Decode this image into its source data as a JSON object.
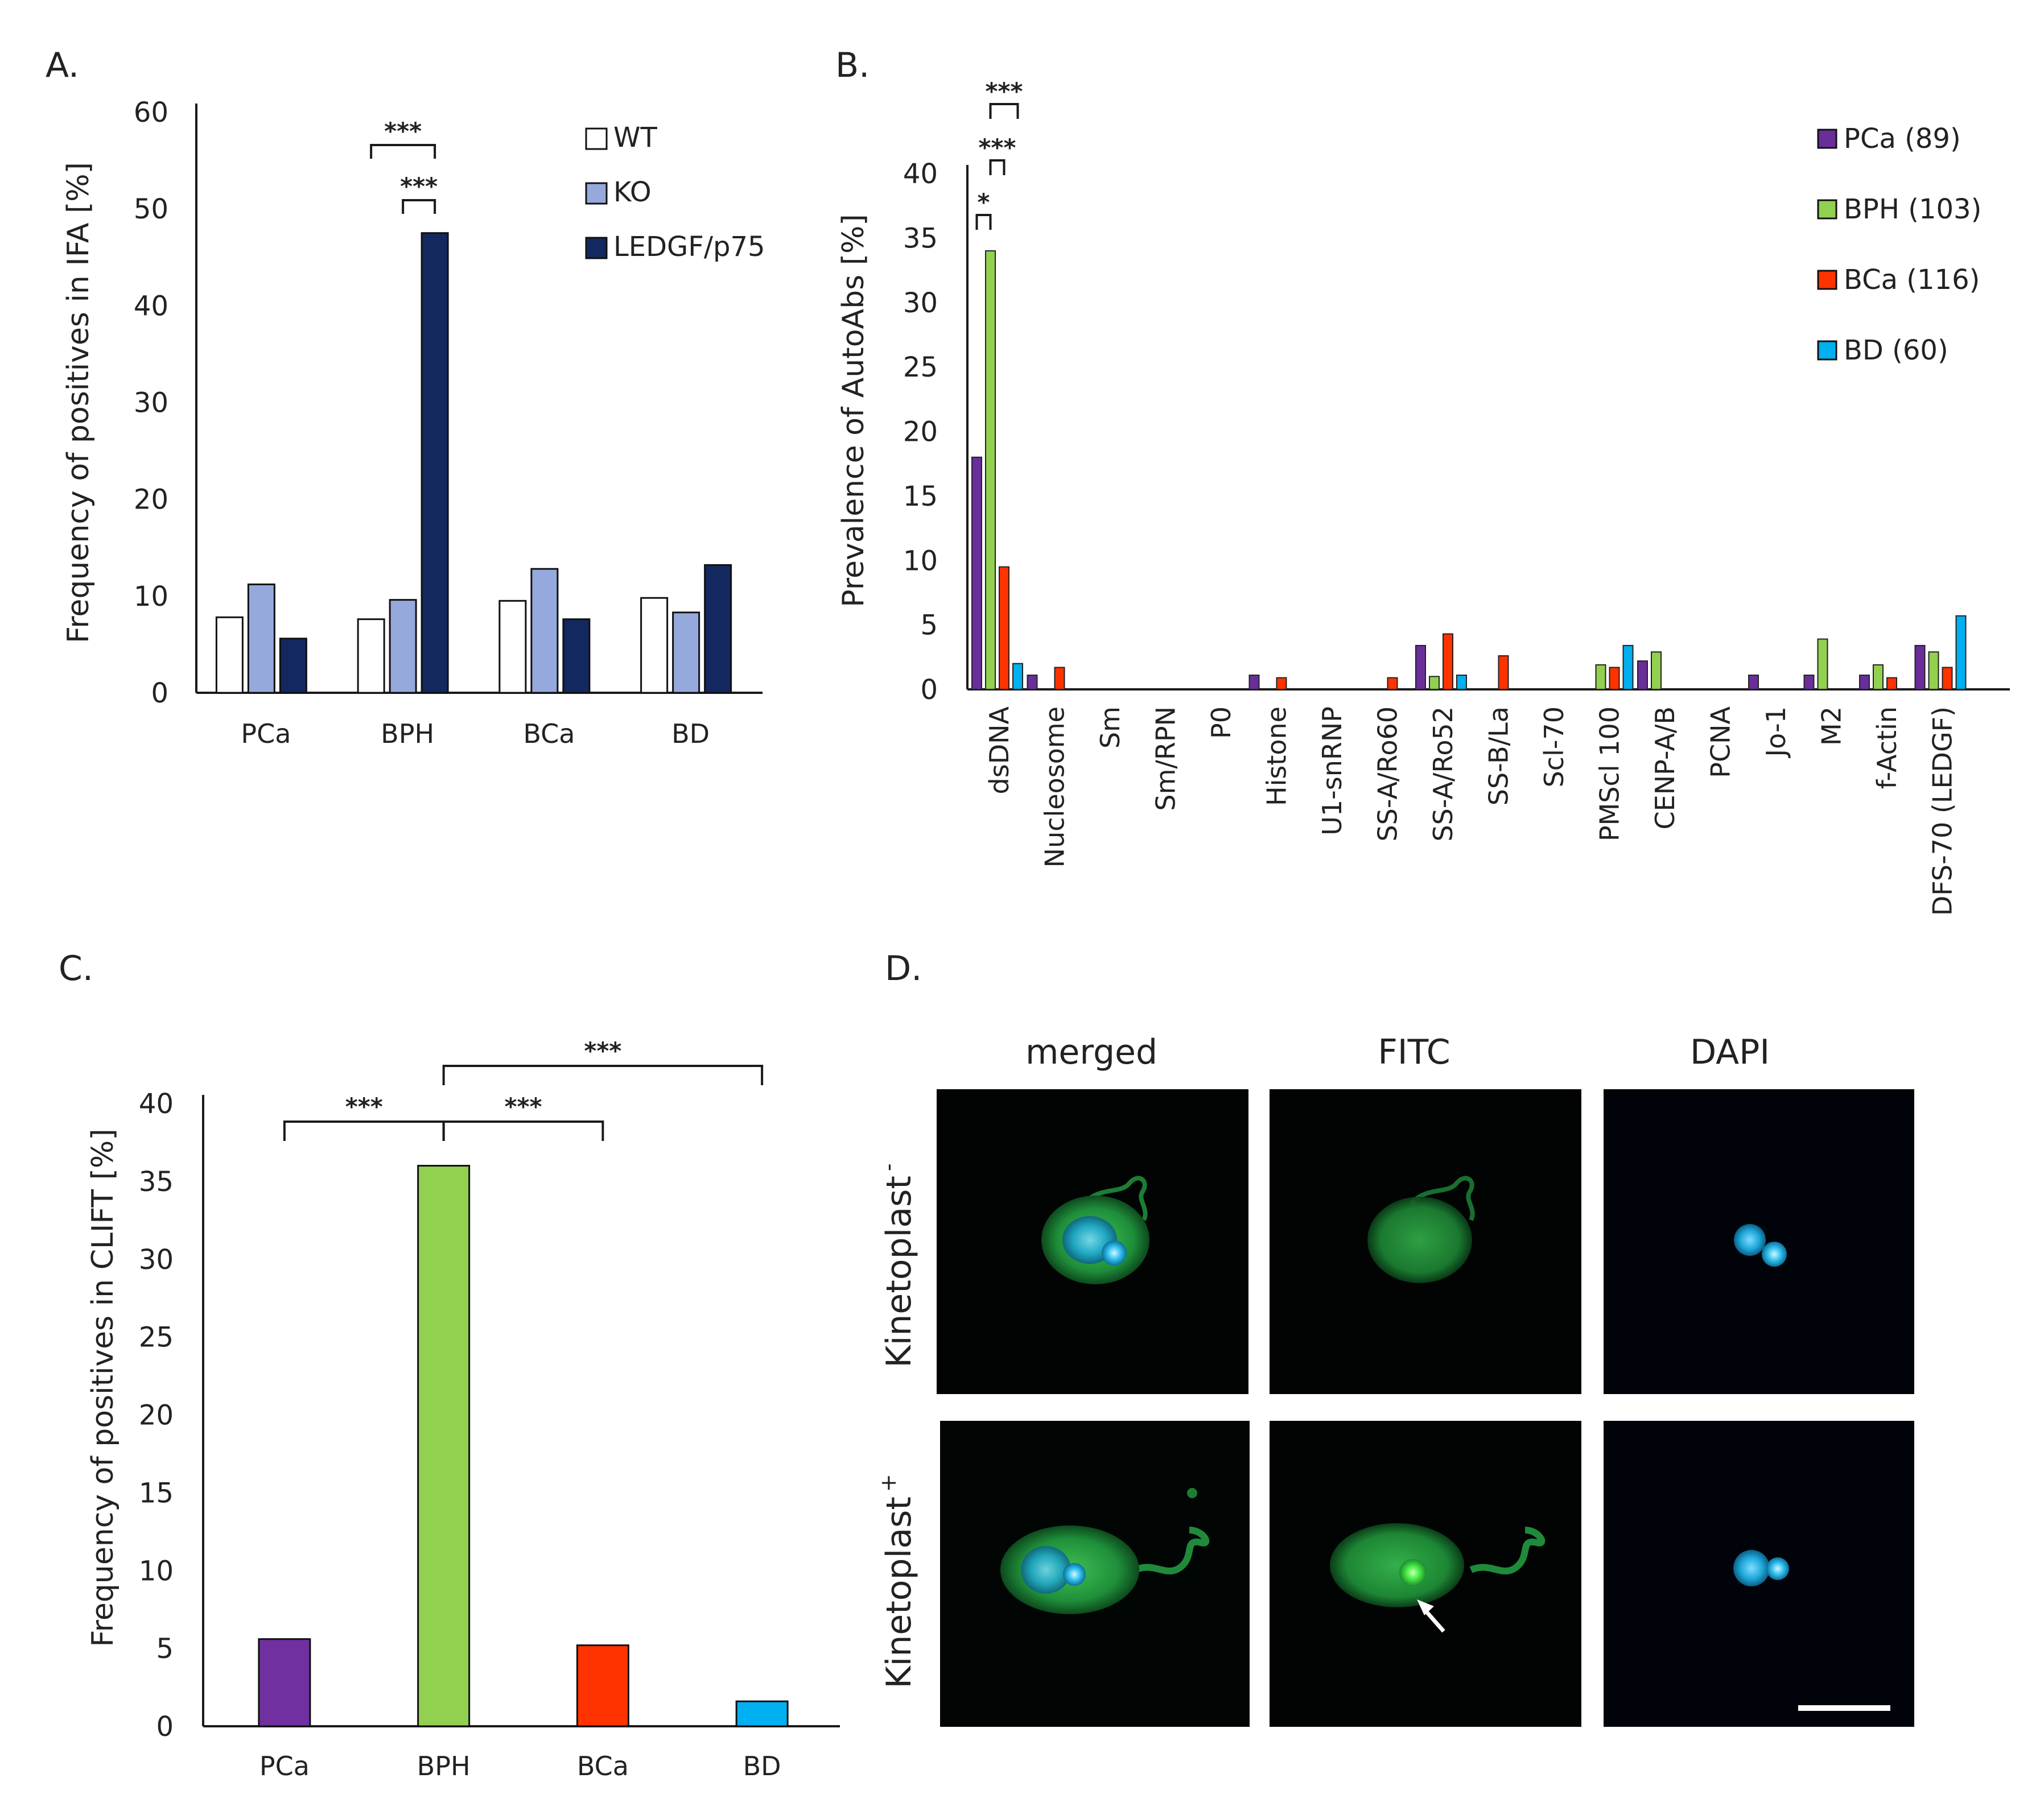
{
  "panels": {
    "a": {
      "letter": "A."
    },
    "b": {
      "letter": "B."
    },
    "c": {
      "letter": "C."
    },
    "d": {
      "letter": "D."
    }
  },
  "chart_data": [
    {
      "id": "A",
      "type": "bar",
      "ylabel": "Frequency of positives in IFA [%]",
      "ylim": [
        0,
        60
      ],
      "yticks": [
        0,
        10,
        20,
        30,
        40,
        50,
        60
      ],
      "categories": [
        "PCa",
        "BPH",
        "BCa",
        "BD"
      ],
      "legend_position": "top-right",
      "series": [
        {
          "name": "WT",
          "color": "#ffffff",
          "values": [
            7.8,
            7.6,
            9.5,
            9.8
          ]
        },
        {
          "name": "KO",
          "color": "#95a9dc",
          "values": [
            11.2,
            9.6,
            12.8,
            8.3
          ]
        },
        {
          "name": "LEDGF/p75",
          "color": "#13285e",
          "values": [
            5.6,
            47.5,
            7.6,
            13.2
          ]
        }
      ],
      "significance": [
        {
          "label": "***",
          "category": "BPH",
          "from_series": "WT",
          "to_series": "LEDGF/p75"
        },
        {
          "label": "***",
          "category": "BPH",
          "from_series": "KO",
          "to_series": "LEDGF/p75"
        }
      ]
    },
    {
      "id": "B",
      "type": "bar",
      "ylabel": "Prevalence of AutoAbs [%]",
      "ylim": [
        0,
        40
      ],
      "yticks": [
        0,
        5,
        10,
        15,
        20,
        25,
        30,
        35,
        40
      ],
      "legend_position": "top-right",
      "categories": [
        "dsDNA",
        "Nucleosome",
        "Sm",
        "Sm/RPN",
        "P0",
        "Histone",
        "U1-snRNP",
        "SS-A/Ro60",
        "SS-A/Ro52",
        "SS-B/La",
        "Scl-70",
        "PMScl 100",
        "CENP-A/B",
        "PCNA",
        "Jo-1",
        "M2",
        "f-Actin",
        "DFS-70 (LEDGF)"
      ],
      "series": [
        {
          "name": "PCa (89)",
          "color": "#6a2e9a",
          "values": [
            18,
            1.1,
            0,
            0,
            0,
            1.1,
            0,
            0,
            3.4,
            0,
            0,
            0,
            2.2,
            0,
            1.1,
            1.1,
            1.1,
            3.4
          ]
        },
        {
          "name": "BPH (103)",
          "color": "#92d050",
          "values": [
            34,
            0,
            0,
            0,
            0,
            0,
            0,
            0,
            1.0,
            0,
            0,
            1.9,
            2.9,
            0,
            0,
            3.9,
            1.9,
            2.9
          ]
        },
        {
          "name": "BCa (116)",
          "color": "#ff3300",
          "values": [
            9.5,
            1.7,
            0,
            0,
            0,
            0.9,
            0,
            0.9,
            4.3,
            2.6,
            0,
            1.7,
            0,
            0,
            0,
            0,
            0.9,
            1.7
          ]
        },
        {
          "name": "BD (60)",
          "color": "#00b0f0",
          "values": [
            2.0,
            0,
            0,
            0,
            0,
            0,
            0,
            0,
            1.1,
            0,
            0,
            3.4,
            0,
            0,
            0,
            0,
            0,
            5.7
          ]
        }
      ],
      "significance": [
        {
          "label": "*",
          "category": "dsDNA",
          "from_series": "PCa (89)",
          "to_series": "BPH (103)"
        },
        {
          "label": "***",
          "category": "dsDNA",
          "from_series": "BPH (103)",
          "to_series": "BCa (116)"
        },
        {
          "label": "***",
          "category": "dsDNA",
          "from_series": "BPH (103)",
          "to_series": "BD (60)"
        }
      ]
    },
    {
      "id": "C",
      "type": "bar",
      "ylabel": "Frequency of positives in CLIFT [%]",
      "ylim": [
        0,
        40
      ],
      "yticks": [
        0,
        5,
        10,
        15,
        20,
        25,
        30,
        35,
        40
      ],
      "categories": [
        "PCa",
        "BPH",
        "BCa",
        "BD"
      ],
      "values": [
        5.6,
        36,
        5.2,
        1.6
      ],
      "colors": [
        "#7030a0",
        "#92d050",
        "#ff3300",
        "#00b0f0"
      ],
      "significance": [
        {
          "label": "***",
          "from": "PCa",
          "to": "BPH"
        },
        {
          "label": "***",
          "from": "BPH",
          "to": "BCa"
        },
        {
          "label": "***",
          "from": "BPH",
          "to": "BD"
        }
      ]
    }
  ],
  "micrographs": {
    "columns": [
      "merged",
      "FITC",
      "DAPI"
    ],
    "rows": [
      {
        "label": "Kinetoplast",
        "sup": "-"
      },
      {
        "label": "Kinetoplast",
        "sup": "+"
      }
    ]
  }
}
